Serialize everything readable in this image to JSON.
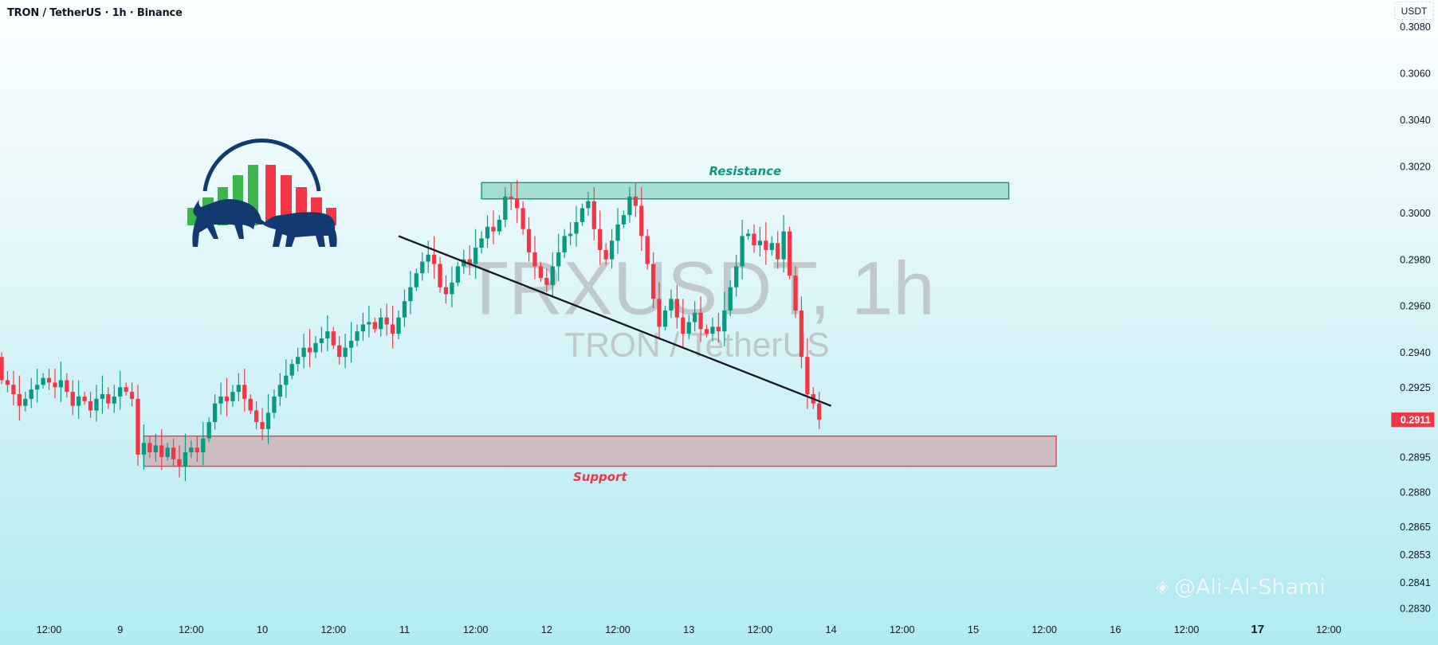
{
  "header": {
    "title": "TRON / TetherUS · 1h · Binance",
    "currency_button": "USDT"
  },
  "watermark": {
    "symbol": "TRXUSDT, 1h",
    "name": "TRON / TetherUS"
  },
  "credit": {
    "text": "@Ali-Al-Shami",
    "icon": "binance-logo-icon"
  },
  "colors": {
    "up": "#089981",
    "down": "#f23645",
    "resistance_fill": "#a6ddd3",
    "support_fill": "#cdbcc2",
    "trendline": "#131722",
    "logo_navy": "#133a70",
    "logo_green": "#3cb54a",
    "logo_red": "#f23645"
  },
  "chart_data": {
    "type": "candlestick",
    "symbol": "TRXUSDT",
    "interval": "1h",
    "ylim": [
      0.2823,
      0.3092
    ],
    "y_ticks": [
      "0.3080",
      "0.3060",
      "0.3040",
      "0.3020",
      "0.3000",
      "0.2980",
      "0.2960",
      "0.2940",
      "0.2925",
      "0.2895",
      "0.2880",
      "0.2865",
      "0.2853",
      "0.2841",
      "0.2830"
    ],
    "x_ticks": [
      {
        "label": "12:00",
        "hour": -12
      },
      {
        "label": "9",
        "hour": 0
      },
      {
        "label": "12:00",
        "hour": 12
      },
      {
        "label": "10",
        "hour": 24
      },
      {
        "label": "12:00",
        "hour": 36
      },
      {
        "label": "11",
        "hour": 48
      },
      {
        "label": "12:00",
        "hour": 60
      },
      {
        "label": "12",
        "hour": 72
      },
      {
        "label": "12:00",
        "hour": 84
      },
      {
        "label": "13",
        "hour": 96
      },
      {
        "label": "12:00",
        "hour": 108
      },
      {
        "label": "14",
        "hour": 120
      },
      {
        "label": "12:00",
        "hour": 132
      },
      {
        "label": "15",
        "hour": 144
      },
      {
        "label": "12:00",
        "hour": 156
      },
      {
        "label": "16",
        "hour": 168
      },
      {
        "label": "12:00",
        "hour": 180
      },
      {
        "label": "17",
        "hour": 192,
        "bold": true
      },
      {
        "label": "12:00",
        "hour": 204
      }
    ],
    "first_candle_hour": -20,
    "first_open": 0.2938,
    "closes": [
      0.2928,
      0.2926,
      0.2922,
      0.2917,
      0.292,
      0.2924,
      0.2926,
      0.2929,
      0.2927,
      0.2925,
      0.2928,
      0.2923,
      0.2917,
      0.2921,
      0.2919,
      0.2915,
      0.292,
      0.2922,
      0.2918,
      0.2921,
      0.2925,
      0.2923,
      0.292,
      0.2896,
      0.2901,
      0.2897,
      0.29,
      0.2895,
      0.2899,
      0.2894,
      0.2891,
      0.2897,
      0.2899,
      0.2897,
      0.2903,
      0.291,
      0.2918,
      0.2921,
      0.2919,
      0.2923,
      0.2926,
      0.292,
      0.2915,
      0.291,
      0.2907,
      0.2914,
      0.2921,
      0.2926,
      0.293,
      0.2935,
      0.2938,
      0.2942,
      0.294,
      0.2944,
      0.2946,
      0.2949,
      0.2943,
      0.2938,
      0.2942,
      0.2945,
      0.2949,
      0.2952,
      0.2953,
      0.295,
      0.2955,
      0.2952,
      0.2948,
      0.2955,
      0.2962,
      0.2968,
      0.2974,
      0.2979,
      0.2982,
      0.2978,
      0.2968,
      0.2965,
      0.297,
      0.2977,
      0.298,
      0.2978,
      0.2985,
      0.2989,
      0.2994,
      0.2992,
      0.2997,
      0.3007,
      0.3006,
      0.3002,
      0.2993,
      0.2983,
      0.2977,
      0.2972,
      0.2969,
      0.2977,
      0.2983,
      0.299,
      0.2991,
      0.2996,
      0.3002,
      0.3005,
      0.2993,
      0.2984,
      0.298,
      0.2988,
      0.2995,
      0.2999,
      0.3007,
      0.3003,
      0.299,
      0.2978,
      0.2963,
      0.2951,
      0.2958,
      0.2963,
      0.2955,
      0.2948,
      0.2953,
      0.2957,
      0.295,
      0.2948,
      0.2951,
      0.2949,
      0.2958,
      0.2968,
      0.2977,
      0.299,
      0.2991,
      0.2986,
      0.2988,
      0.2984,
      0.2987,
      0.298,
      0.2992,
      0.2973,
      0.2958,
      0.2938,
      0.2922,
      0.2918,
      0.2911
    ],
    "last_price": "0.2911",
    "zones": [
      {
        "name": "Resistance",
        "label": "Resistance",
        "from_price": 0.3006,
        "to_price": 0.3013,
        "from_hour": 61,
        "to_hour": 150
      },
      {
        "name": "Support",
        "label": "Support",
        "from_price": 0.2891,
        "to_price": 0.2904,
        "from_hour": 4,
        "to_hour": 158
      }
    ],
    "trendline": {
      "from": {
        "hour": 47,
        "price": 0.299
      },
      "to": {
        "hour": 120,
        "price": 0.2917
      }
    }
  }
}
